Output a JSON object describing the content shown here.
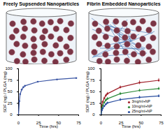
{
  "chart_data": [
    {
      "type": "line",
      "title": "Freely Supsended Nanoparticles",
      "x_label": "Time (hrs)",
      "y_label": "SDF (ng) / PLGA (mg)",
      "xlim": [
        0,
        75
      ],
      "xticks": [
        0,
        25,
        50,
        75
      ],
      "ylim": [
        0,
        100
      ],
      "yticks": [
        0,
        25,
        50,
        75,
        100
      ],
      "grid": false,
      "marker": "circle",
      "x": [
        0,
        1,
        2,
        4,
        6,
        8,
        24,
        48,
        72
      ],
      "series": [
        {
          "name": null,
          "color": "#3a55a4",
          "values": [
            0,
            30,
            45,
            55,
            60,
            63,
            72,
            77,
            80
          ]
        }
      ]
    },
    {
      "type": "line",
      "title": "Fibrin Embedded Nanoparticles",
      "x_label": "Time (hrs)",
      "y_label": "SDF (ng) / PLGA (mg)",
      "xlim": [
        0,
        75
      ],
      "xticks": [
        0,
        25,
        50,
        75
      ],
      "ylim": [
        0,
        100
      ],
      "yticks": [
        0,
        25,
        50,
        75,
        100
      ],
      "grid": false,
      "marker": "circle",
      "legend": "lower right",
      "x": [
        0,
        1,
        2,
        4,
        6,
        8,
        24,
        48,
        72
      ],
      "series": [
        {
          "name": "3mg/ml+NP",
          "color": "#a0202a",
          "values": [
            0,
            20,
            28,
            36,
            42,
            46,
            60,
            70,
            75
          ],
          "errors": [
            0,
            2,
            2,
            3,
            3,
            3,
            3,
            4,
            4
          ]
        },
        {
          "name": "10mg/ml+NP",
          "color": "#2e8b3a",
          "values": [
            0,
            14,
            20,
            27,
            32,
            35,
            46,
            53,
            57
          ],
          "errors": [
            0,
            2,
            2,
            2,
            3,
            3,
            3,
            3,
            3
          ]
        },
        {
          "name": "25mg/ml+NP",
          "color": "#2a4fa0",
          "values": [
            0,
            10,
            14,
            19,
            23,
            26,
            33,
            38,
            41
          ],
          "errors": [
            0,
            1,
            2,
            2,
            2,
            2,
            3,
            3,
            3
          ]
        }
      ]
    }
  ]
}
